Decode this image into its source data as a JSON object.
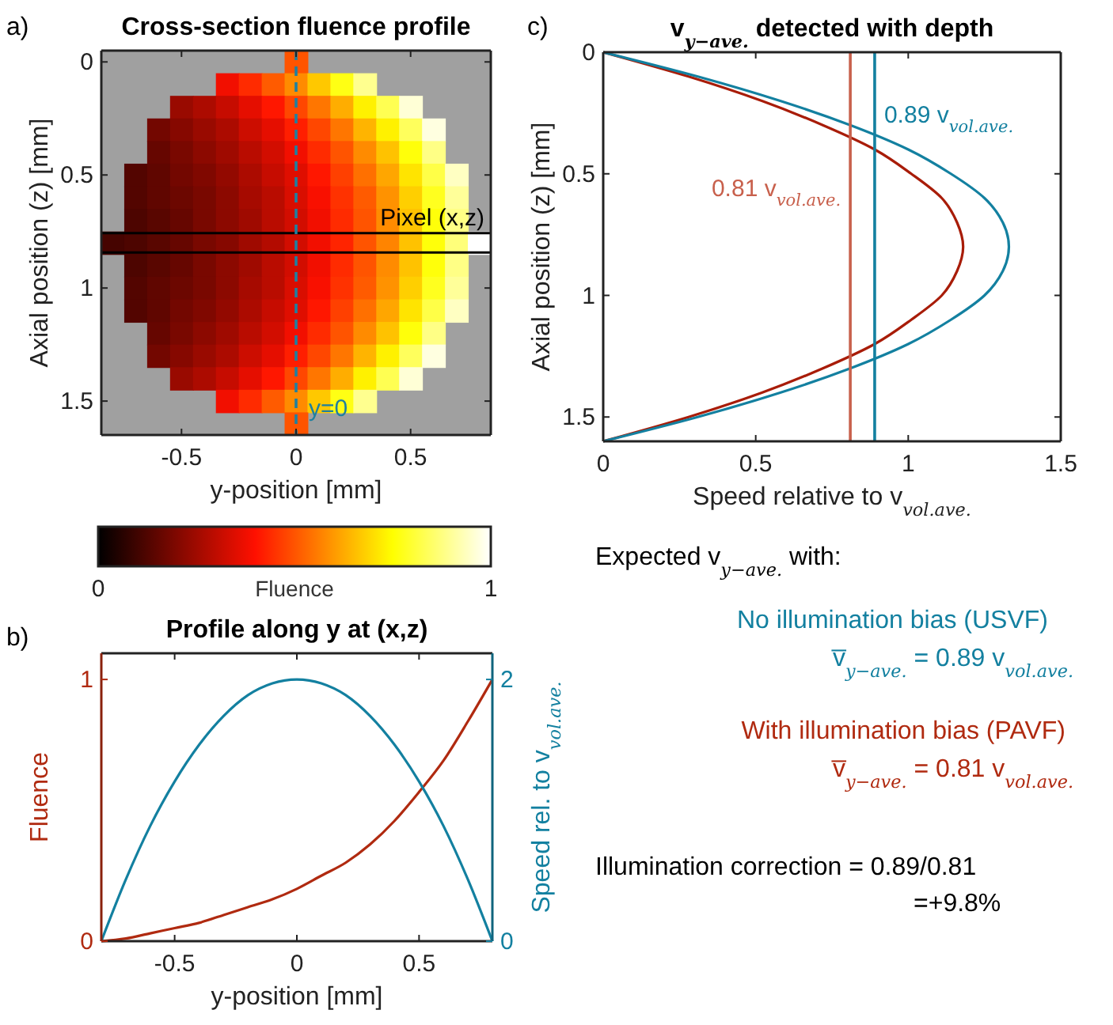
{
  "chart_data": [
    {
      "type": "heatmap",
      "title": "Cross-section fluence profile",
      "xlabel": "y-position [mm]",
      "ylabel": "Axial position (z) [mm]",
      "clabel": "Fluence",
      "annotations": [
        "a)",
        "Pixel (x,z)"
      ],
      "categories": [
        null,
        null,
        null,
        "-0.5",
        null,
        null,
        null,
        null,
        "0",
        null,
        null,
        null,
        null,
        "0.5",
        null,
        null,
        null
      ],
      "y_categories": [
        "0",
        null,
        null,
        null,
        null,
        "0.5",
        null,
        null,
        null,
        null,
        "1",
        null,
        null,
        null,
        null,
        "1.5",
        null
      ],
      "cells": [
        [
          null,
          null,
          null,
          null,
          null,
          null,
          null,
          null,
          0.5,
          null,
          null,
          null,
          null,
          null,
          null,
          null,
          null
        ],
        [
          null,
          null,
          null,
          null,
          null,
          0.38,
          0.44,
          0.51,
          0.58,
          0.67,
          0.77,
          0.89,
          null,
          null,
          null,
          null,
          null
        ],
        [
          null,
          null,
          null,
          0.24,
          0.27,
          0.31,
          0.36,
          0.41,
          0.48,
          0.55,
          0.63,
          0.73,
          0.83,
          0.96,
          null,
          null,
          null
        ],
        [
          null,
          null,
          0.18,
          0.21,
          0.24,
          0.27,
          0.32,
          0.36,
          0.42,
          0.48,
          0.55,
          0.64,
          0.73,
          0.84,
          0.97,
          null,
          null
        ],
        [
          null,
          null,
          0.16,
          0.19,
          0.22,
          0.25,
          0.29,
          0.33,
          0.38,
          0.44,
          0.5,
          0.58,
          0.66,
          0.76,
          0.88,
          null,
          null
        ],
        [
          null,
          0.13,
          0.15,
          0.18,
          0.2,
          0.23,
          0.27,
          0.31,
          0.35,
          0.41,
          0.47,
          0.54,
          0.62,
          0.71,
          0.82,
          0.94,
          null
        ],
        [
          null,
          0.13,
          0.15,
          0.17,
          0.19,
          0.22,
          0.26,
          0.29,
          0.34,
          0.39,
          0.45,
          0.51,
          0.59,
          0.68,
          0.78,
          0.9,
          null
        ],
        [
          null,
          0.12,
          0.14,
          0.16,
          0.19,
          0.22,
          0.25,
          0.29,
          0.33,
          0.38,
          0.44,
          0.5,
          0.58,
          0.66,
          0.76,
          0.88,
          null
        ],
        [
          0.11,
          0.12,
          0.14,
          0.16,
          0.19,
          0.21,
          0.25,
          0.28,
          0.33,
          0.38,
          0.43,
          0.5,
          0.57,
          0.66,
          0.76,
          0.87,
          1.0
        ],
        [
          null,
          0.12,
          0.14,
          0.16,
          0.19,
          0.22,
          0.25,
          0.29,
          0.33,
          0.38,
          0.44,
          0.5,
          0.58,
          0.66,
          0.76,
          0.88,
          null
        ],
        [
          null,
          0.13,
          0.15,
          0.17,
          0.19,
          0.22,
          0.26,
          0.29,
          0.34,
          0.39,
          0.45,
          0.51,
          0.59,
          0.68,
          0.78,
          0.9,
          null
        ],
        [
          null,
          0.13,
          0.15,
          0.18,
          0.2,
          0.23,
          0.27,
          0.31,
          0.35,
          0.41,
          0.47,
          0.54,
          0.62,
          0.71,
          0.82,
          0.94,
          null
        ],
        [
          null,
          null,
          0.16,
          0.19,
          0.22,
          0.25,
          0.29,
          0.33,
          0.38,
          0.44,
          0.5,
          0.58,
          0.66,
          0.76,
          0.88,
          null,
          null
        ],
        [
          null,
          null,
          0.18,
          0.21,
          0.24,
          0.27,
          0.32,
          0.36,
          0.42,
          0.48,
          0.55,
          0.64,
          0.73,
          0.84,
          0.97,
          null,
          null
        ],
        [
          null,
          null,
          null,
          0.24,
          0.27,
          0.31,
          0.36,
          0.41,
          0.48,
          0.55,
          0.63,
          0.73,
          0.83,
          0.96,
          null,
          null,
          null
        ],
        [
          null,
          null,
          null,
          null,
          null,
          0.38,
          0.44,
          0.51,
          0.58,
          0.67,
          0.77,
          0.89,
          null,
          null,
          null,
          null,
          null
        ],
        [
          null,
          null,
          null,
          null,
          null,
          null,
          null,
          null,
          0.5,
          null,
          null,
          null,
          null,
          null,
          null,
          null,
          null
        ]
      ],
      "clim": [
        0,
        1
      ],
      "cticks": [
        0,
        1
      ],
      "ref_lines": [
        {
          "axis": "x",
          "value": "0",
          "label": "y=0",
          "color": "#1f80a0",
          "line_style": "dashed"
        }
      ]
    },
    {
      "type": "line",
      "title": "Profile along y at (x,z)",
      "xlabel": "y-position [mm]",
      "ylabel": "Fluence",
      "y2label": "Speed rel. to v$_{vol.ave.}$",
      "annotations": [
        "b)"
      ],
      "x": [
        -0.8,
        -0.7,
        -0.6,
        -0.5,
        -0.4,
        -0.3,
        -0.2,
        -0.1,
        0,
        0.1,
        0.2,
        0.3,
        0.4,
        0.5,
        0.6,
        0.7,
        0.8
      ],
      "series": [
        {
          "color": "#b02a10",
          "values": [
            0,
            0.01,
            0.03,
            0.05,
            0.07,
            0.1,
            0.13,
            0.16,
            0.2,
            0.25,
            0.3,
            0.37,
            0.46,
            0.57,
            0.69,
            0.84,
            1.0
          ]
        },
        {
          "color": "#1380a0",
          "axis": "y2",
          "values": [
            0,
            0.47,
            0.88,
            1.22,
            1.5,
            1.72,
            1.88,
            1.97,
            2,
            1.97,
            1.88,
            1.72,
            1.5,
            1.22,
            0.88,
            0.47,
            0
          ]
        }
      ],
      "xlim": [
        -0.8,
        0.8
      ],
      "xticks": [
        -0.5,
        0,
        0.5
      ],
      "ylim": [
        0,
        1.1
      ],
      "yticks": [
        0,
        1
      ],
      "y2lim": [
        0,
        2.2
      ],
      "y2ticks": [
        0,
        2
      ]
    },
    {
      "type": "line",
      "title": "v$_{y−ave.}$ detected with depth",
      "xlabel": "Speed relative to v$_{vol.ave.}$",
      "ylabel": "Axial position (z) [mm]",
      "annotations": [
        "c)"
      ],
      "series": [
        {
          "color": "#a81c08",
          "x": [
            0,
            0.28,
            0.52,
            0.72,
            0.89,
            1.01,
            1.11,
            1.16,
            1.18,
            1.16,
            1.11,
            1.01,
            0.89,
            0.72,
            0.52,
            0.28,
            0
          ],
          "values": [
            0,
            0.1,
            0.2,
            0.3,
            0.4,
            0.5,
            0.6,
            0.7,
            0.8,
            0.9,
            1.0,
            1.1,
            1.2,
            1.3,
            1.4,
            1.5,
            1.6
          ]
        },
        {
          "color": "#1380a0",
          "x": [
            0,
            0.31,
            0.58,
            0.81,
            1.0,
            1.14,
            1.25,
            1.31,
            1.33,
            1.31,
            1.25,
            1.14,
            1.0,
            0.81,
            0.58,
            0.31,
            0
          ],
          "values": [
            0,
            0.1,
            0.2,
            0.3,
            0.4,
            0.5,
            0.6,
            0.7,
            0.8,
            0.9,
            1.0,
            1.1,
            1.2,
            1.3,
            1.4,
            1.5,
            1.6
          ]
        }
      ],
      "xlim": [
        0,
        1.5
      ],
      "xticks": [
        0,
        0.5,
        1,
        1.5
      ],
      "ylim": [
        1.6,
        0
      ],
      "yticks": [
        0,
        0.5,
        1,
        1.5
      ],
      "ref_lines": [
        {
          "axis": "x",
          "value": 0.81,
          "label": "0.81 v$_{vol.ave.}$",
          "color": "#c8604c"
        },
        {
          "axis": "x",
          "value": 0.89,
          "label": "0.89 v$_{vol.ave.}$",
          "color": "#1380a0"
        }
      ]
    },
    {
      "type": "other",
      "annotations": [
        "Expected v$_{y−ave.}$ with:",
        "No illumination bias (USVF)",
        "v̅$_{y−ave.}$ = 0.89 v$_{vol.ave.}$",
        "With illumination bias (PAVF)",
        "v̅$_{y−ave.}$ = 0.81 v$_{vol.ave.}$",
        "Illumination correction = 0.89/0.81",
        "=+9.8%"
      ],
      "colors": [
        "#000000",
        "#1380a0",
        "#1380a0",
        "#b02a10",
        "#b02a10",
        "#000000",
        "#000000"
      ]
    }
  ]
}
